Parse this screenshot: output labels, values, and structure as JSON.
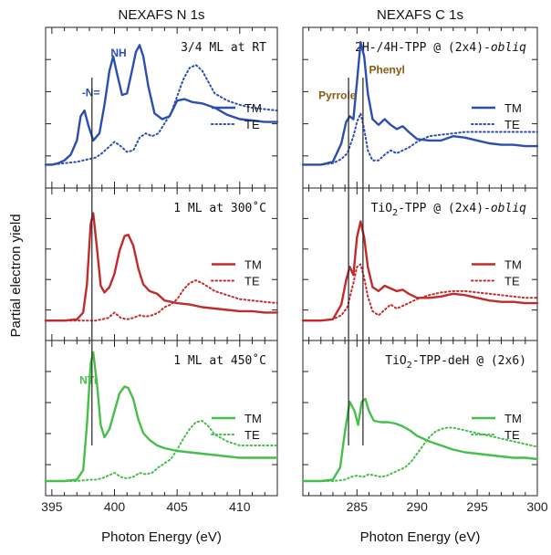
{
  "figure": {
    "ylabel": "Partial electron yield"
  },
  "colors": {
    "blue": "#2b4fb0",
    "red": "#c42a2a",
    "green": "#46bf4a",
    "brown": "#8a5a10",
    "frame": "#222222",
    "marker_line": "#222222"
  },
  "chart_data": [
    {
      "type": "line",
      "column": 0,
      "row": 0,
      "title": "NEXAFS N 1s",
      "label": "3/4 ML at RT",
      "xlabel": "",
      "ylabel": "",
      "xlim": [
        394.5,
        413
      ],
      "ylim": [
        0,
        1
      ],
      "xticks": [],
      "xticklabels": [],
      "color_key": "blue",
      "legend": [
        "TM",
        "TE"
      ],
      "annotations": [
        {
          "text": "-N=",
          "x": 397.4,
          "y": 0.58,
          "color_key": "blue"
        },
        {
          "text": "NH",
          "x": 399.7,
          "y": 0.86,
          "color_key": "blue"
        }
      ],
      "series": [
        {
          "name": "TM",
          "style": "solid",
          "x": [
            394.5,
            395,
            395.5,
            396,
            396.5,
            397,
            397.3,
            397.6,
            397.9,
            398.3,
            398.8,
            399.2,
            399.6,
            399.9,
            400.2,
            400.6,
            401,
            401.4,
            401.7,
            402,
            402.3,
            402.7,
            403.2,
            403.8,
            404.4,
            405,
            405.6,
            406.2,
            407,
            408,
            409,
            410,
            411,
            412,
            413
          ],
          "y": [
            0.1,
            0.1,
            0.11,
            0.13,
            0.17,
            0.27,
            0.44,
            0.48,
            0.38,
            0.27,
            0.32,
            0.52,
            0.76,
            0.86,
            0.74,
            0.59,
            0.6,
            0.76,
            0.89,
            0.94,
            0.86,
            0.65,
            0.46,
            0.42,
            0.44,
            0.55,
            0.56,
            0.54,
            0.53,
            0.5,
            0.45,
            0.42,
            0.41,
            0.4,
            0.4
          ]
        },
        {
          "name": "TE",
          "style": "dotted",
          "x": [
            394.5,
            395,
            396,
            397,
            397.5,
            398,
            398.5,
            399,
            399.5,
            400,
            400.5,
            401,
            401.5,
            402,
            402.5,
            403,
            403.5,
            404,
            404.5,
            405,
            405.5,
            406,
            406.5,
            407,
            407.5,
            408,
            409,
            410,
            411,
            412,
            413
          ],
          "y": [
            0.1,
            0.1,
            0.11,
            0.12,
            0.13,
            0.14,
            0.15,
            0.18,
            0.22,
            0.26,
            0.23,
            0.19,
            0.2,
            0.29,
            0.32,
            0.3,
            0.32,
            0.39,
            0.46,
            0.58,
            0.7,
            0.78,
            0.8,
            0.76,
            0.68,
            0.6,
            0.55,
            0.52,
            0.5,
            0.49,
            0.48
          ]
        }
      ]
    },
    {
      "type": "line",
      "column": 0,
      "row": 1,
      "label": "1 ML at 300˚C",
      "xlabel": "",
      "ylabel": "",
      "xlim": [
        394.5,
        413
      ],
      "ylim": [
        0,
        1
      ],
      "xticks": [],
      "xticklabels": [],
      "color_key": "red",
      "legend": [
        "TM",
        "TE"
      ],
      "annotations": [],
      "series": [
        {
          "name": "TM",
          "style": "solid",
          "x": [
            394.5,
            396,
            397,
            397.5,
            397.8,
            398.1,
            398.3,
            398.6,
            398.9,
            399.2,
            399.6,
            400,
            400.4,
            400.8,
            401.1,
            401.5,
            401.9,
            402.3,
            402.8,
            403.4,
            404,
            405,
            406,
            407,
            408,
            409,
            410,
            411,
            412,
            413
          ],
          "y": [
            0.08,
            0.08,
            0.09,
            0.14,
            0.35,
            0.8,
            0.88,
            0.62,
            0.34,
            0.29,
            0.33,
            0.43,
            0.6,
            0.71,
            0.72,
            0.64,
            0.47,
            0.35,
            0.3,
            0.28,
            0.23,
            0.21,
            0.2,
            0.18,
            0.17,
            0.16,
            0.15,
            0.15,
            0.14,
            0.14
          ]
        },
        {
          "name": "TE",
          "style": "dotted",
          "x": [
            394.5,
            396,
            397,
            398,
            398.5,
            399,
            399.5,
            400,
            400.5,
            401,
            401.5,
            402,
            402.5,
            403,
            403.5,
            404,
            404.5,
            405,
            405.5,
            406,
            406.5,
            407,
            407.5,
            408,
            409,
            410,
            411,
            412,
            413
          ],
          "y": [
            0.08,
            0.08,
            0.08,
            0.08,
            0.08,
            0.09,
            0.1,
            0.14,
            0.1,
            0.09,
            0.1,
            0.12,
            0.11,
            0.12,
            0.14,
            0.18,
            0.2,
            0.24,
            0.31,
            0.36,
            0.38,
            0.36,
            0.33,
            0.3,
            0.27,
            0.24,
            0.23,
            0.22,
            0.21
          ]
        }
      ]
    },
    {
      "type": "line",
      "column": 0,
      "row": 2,
      "label": "1 ML at 450˚C",
      "xlabel": "Photon Energy (eV)",
      "ylabel": "",
      "xlim": [
        394.5,
        413
      ],
      "ylim": [
        0,
        1
      ],
      "xticks": [
        395,
        400,
        405,
        410
      ],
      "xticklabels": [
        "395",
        "400",
        "405",
        "410"
      ],
      "color_key": "green",
      "legend": [
        "TM",
        "TE"
      ],
      "annotations": [
        {
          "text": "NTi",
          "x": 397.2,
          "y": 0.75,
          "color_key": "green"
        }
      ],
      "series": [
        {
          "name": "TM",
          "style": "solid",
          "x": [
            394.5,
            396,
            397,
            397.5,
            397.8,
            398.1,
            398.3,
            398.6,
            398.9,
            399.2,
            399.6,
            400,
            400.4,
            400.8,
            401.1,
            401.5,
            401.9,
            402.3,
            402.8,
            403.4,
            404,
            405,
            406,
            407,
            408,
            409,
            410,
            411,
            412,
            413
          ],
          "y": [
            0.04,
            0.04,
            0.05,
            0.12,
            0.45,
            0.9,
            0.98,
            0.75,
            0.45,
            0.36,
            0.42,
            0.55,
            0.68,
            0.73,
            0.72,
            0.64,
            0.49,
            0.39,
            0.34,
            0.3,
            0.28,
            0.26,
            0.25,
            0.24,
            0.23,
            0.22,
            0.21,
            0.21,
            0.21,
            0.21
          ]
        },
        {
          "name": "TE",
          "style": "dotted",
          "x": [
            394.5,
            396,
            397,
            398,
            398.5,
            399,
            399.5,
            400,
            400.5,
            401,
            401.5,
            402,
            402.5,
            403,
            403.5,
            404,
            404.5,
            405,
            405.5,
            406,
            406.5,
            407,
            407.5,
            408,
            409,
            410,
            411,
            412,
            413
          ],
          "y": [
            0.04,
            0.04,
            0.04,
            0.05,
            0.05,
            0.06,
            0.08,
            0.1,
            0.07,
            0.06,
            0.07,
            0.1,
            0.09,
            0.1,
            0.14,
            0.17,
            0.2,
            0.27,
            0.35,
            0.42,
            0.47,
            0.48,
            0.44,
            0.38,
            0.33,
            0.3,
            0.3,
            0.3,
            0.3
          ]
        }
      ]
    },
    {
      "type": "line",
      "column": 1,
      "row": 0,
      "title": "NEXAFS C 1s",
      "label": "2H-/4H-TPP @ (2x4)-",
      "label_italic": "obliq",
      "xlabel": "",
      "ylabel": "",
      "xlim": [
        280.5,
        300
      ],
      "ylim": [
        0,
        1
      ],
      "xticks": [],
      "xticklabels": [],
      "color_key": "blue",
      "legend": [
        "TM",
        "TE"
      ],
      "annotations": [
        {
          "text": "Pyrrole",
          "x": 281.8,
          "y": 0.56,
          "color_key": "brown"
        },
        {
          "text": "Phenyl",
          "x": 286.0,
          "y": 0.74,
          "color_key": "brown"
        }
      ],
      "series": [
        {
          "name": "TM",
          "style": "solid",
          "x": [
            280.5,
            282,
            283,
            283.7,
            284.1,
            284.4,
            284.7,
            285,
            285.3,
            285.6,
            285.9,
            286.3,
            286.8,
            287.3,
            287.8,
            288.3,
            288.8,
            289.3,
            290,
            291,
            292,
            293,
            294,
            295,
            296,
            297,
            298,
            299,
            300
          ],
          "y": [
            0.1,
            0.1,
            0.12,
            0.25,
            0.4,
            0.44,
            0.42,
            0.68,
            0.96,
            0.86,
            0.6,
            0.42,
            0.38,
            0.42,
            0.38,
            0.35,
            0.37,
            0.33,
            0.28,
            0.27,
            0.27,
            0.3,
            0.29,
            0.27,
            0.25,
            0.24,
            0.24,
            0.23,
            0.23
          ]
        },
        {
          "name": "TE",
          "style": "dotted",
          "x": [
            280.5,
            282,
            283,
            283.7,
            284.2,
            284.7,
            285,
            285.3,
            285.6,
            285.9,
            286.3,
            286.8,
            287.3,
            287.8,
            288.3,
            288.8,
            289.3,
            290,
            291,
            292,
            293,
            294,
            295,
            296,
            297,
            298,
            299,
            300
          ],
          "y": [
            0.1,
            0.1,
            0.11,
            0.14,
            0.18,
            0.3,
            0.4,
            0.46,
            0.35,
            0.2,
            0.13,
            0.13,
            0.17,
            0.2,
            0.18,
            0.2,
            0.22,
            0.26,
            0.3,
            0.31,
            0.32,
            0.33,
            0.33,
            0.33,
            0.33,
            0.33,
            0.33,
            0.33
          ]
        }
      ]
    },
    {
      "type": "line",
      "column": 1,
      "row": 1,
      "label": "TiO",
      "label_sub": "2",
      "label_rest": "-TPP @ (2x4)-",
      "label_italic": "obliq",
      "xlabel": "",
      "ylabel": "",
      "xlim": [
        280.5,
        300
      ],
      "ylim": [
        0,
        1
      ],
      "xticks": [],
      "xticklabels": [],
      "color_key": "red",
      "legend": [
        "TM",
        "TE"
      ],
      "annotations": [],
      "series": [
        {
          "name": "TM",
          "style": "solid",
          "x": [
            280.5,
            282,
            283,
            283.7,
            284.1,
            284.4,
            284.7,
            285,
            285.3,
            285.6,
            285.9,
            286.3,
            286.8,
            287.3,
            287.8,
            288.3,
            288.8,
            289.3,
            290,
            291,
            292,
            293,
            294,
            295,
            296,
            297,
            298,
            299,
            300
          ],
          "y": [
            0.08,
            0.08,
            0.09,
            0.2,
            0.38,
            0.48,
            0.42,
            0.7,
            0.82,
            0.7,
            0.48,
            0.33,
            0.3,
            0.34,
            0.32,
            0.3,
            0.31,
            0.28,
            0.25,
            0.25,
            0.26,
            0.28,
            0.27,
            0.25,
            0.23,
            0.22,
            0.22,
            0.21,
            0.21
          ]
        },
        {
          "name": "TE",
          "style": "dotted",
          "x": [
            280.5,
            282,
            283,
            283.7,
            284.2,
            284.7,
            285,
            285.3,
            285.6,
            285.9,
            286.3,
            286.8,
            287.3,
            287.8,
            288.3,
            288.8,
            289.3,
            290,
            291,
            292,
            293,
            294,
            295,
            296,
            297,
            298,
            299,
            300
          ],
          "y": [
            0.08,
            0.08,
            0.09,
            0.12,
            0.18,
            0.36,
            0.48,
            0.5,
            0.4,
            0.26,
            0.15,
            0.12,
            0.16,
            0.2,
            0.17,
            0.19,
            0.21,
            0.24,
            0.27,
            0.29,
            0.3,
            0.3,
            0.29,
            0.28,
            0.27,
            0.26,
            0.25,
            0.25
          ]
        }
      ]
    },
    {
      "type": "line",
      "column": 1,
      "row": 2,
      "label": "TiO",
      "label_sub": "2",
      "label_rest": "-TPP-deH @ (2x6)",
      "label_italic": "",
      "xlabel": "Photon Energy (eV)",
      "ylabel": "",
      "xlim": [
        280.5,
        300
      ],
      "ylim": [
        0,
        1
      ],
      "xticks": [
        285,
        290,
        295,
        300
      ],
      "xticklabels": [
        "285",
        "290",
        "295",
        "300"
      ],
      "color_key": "green",
      "legend": [
        "TM",
        "TE"
      ],
      "annotations": [],
      "series": [
        {
          "name": "TM",
          "style": "solid",
          "x": [
            280.5,
            282,
            283,
            283.6,
            284,
            284.4,
            284.8,
            285.1,
            285.4,
            285.7,
            286,
            286.4,
            287,
            287.6,
            288.2,
            288.8,
            289.4,
            290,
            291,
            292,
            293,
            294,
            295,
            296,
            297,
            298,
            299,
            300
          ],
          "y": [
            0.04,
            0.04,
            0.05,
            0.14,
            0.4,
            0.62,
            0.55,
            0.45,
            0.62,
            0.64,
            0.55,
            0.48,
            0.47,
            0.47,
            0.46,
            0.44,
            0.41,
            0.37,
            0.33,
            0.3,
            0.27,
            0.25,
            0.24,
            0.23,
            0.22,
            0.21,
            0.21,
            0.2
          ]
        },
        {
          "name": "TE",
          "style": "dotted",
          "x": [
            280.5,
            282,
            283,
            284,
            284.5,
            285,
            285.5,
            286,
            286.5,
            287,
            287.5,
            288,
            288.5,
            289,
            289.5,
            290,
            290.5,
            291,
            291.5,
            292,
            292.5,
            293,
            293.5,
            294,
            295,
            296,
            297,
            298,
            299,
            300
          ],
          "y": [
            0.04,
            0.04,
            0.04,
            0.05,
            0.07,
            0.08,
            0.07,
            0.09,
            0.08,
            0.07,
            0.08,
            0.1,
            0.12,
            0.14,
            0.18,
            0.24,
            0.3,
            0.36,
            0.4,
            0.42,
            0.43,
            0.43,
            0.42,
            0.41,
            0.39,
            0.37,
            0.35,
            0.33,
            0.31,
            0.29
          ]
        }
      ]
    }
  ],
  "marker_lines": [
    {
      "column": 0,
      "x": 398.2,
      "rows": [
        0,
        2
      ]
    },
    {
      "column": 1,
      "x": 284.3,
      "rows": [
        0,
        2
      ]
    },
    {
      "column": 1,
      "x": 285.5,
      "rows": [
        0,
        2
      ]
    }
  ]
}
